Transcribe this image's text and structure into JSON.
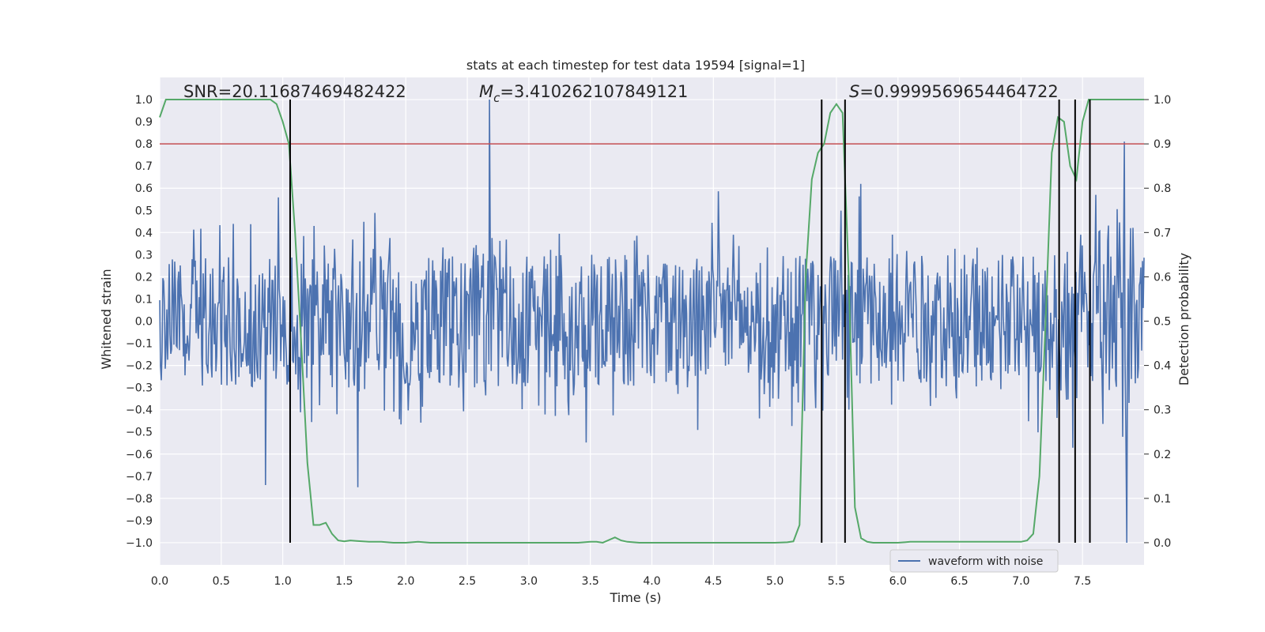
{
  "chart_data": {
    "type": "line",
    "title": "stats at each timestep for test data 19594 [signal=1]",
    "xlabel": "Time (s)",
    "ylabel": "Whitened strain",
    "y2label": "Detection probability",
    "xlim": [
      0.0,
      8.0
    ],
    "ylim": [
      -1.1,
      1.1
    ],
    "y2lim": [
      -0.05,
      1.05
    ],
    "xticks": [
      "0.0",
      "0.5",
      "1.0",
      "1.5",
      "2.0",
      "2.5",
      "3.0",
      "3.5",
      "4.0",
      "4.5",
      "5.0",
      "5.5",
      "6.0",
      "6.5",
      "7.0",
      "7.5"
    ],
    "yticks": [
      "1.0",
      "0.9",
      "0.8",
      "0.7",
      "0.6",
      "0.5",
      "0.4",
      "0.3",
      "0.2",
      "0.1",
      "0.0",
      "−0.1",
      "−0.2",
      "−0.3",
      "−0.4",
      "−0.5",
      "−0.6",
      "−0.7",
      "−0.8",
      "−0.9",
      "−1.0"
    ],
    "y2ticks": [
      "1.0",
      "0.9",
      "0.8",
      "0.7",
      "0.6",
      "0.5",
      "0.4",
      "0.3",
      "0.2",
      "0.1",
      "0.0"
    ],
    "grid": true,
    "legend_position": "bottom-right",
    "annotations": {
      "snr": "SNR=20.11687469482422",
      "mc_symbol": "M",
      "mc_sub": "c",
      "mc_value": "=3.410262107849121",
      "s_symbol": "S",
      "s_value": "=0.9999569654464722"
    },
    "threshold_line": {
      "y": 0.8,
      "color": "#c44e52"
    },
    "vertical_lines": {
      "x": [
        1.06,
        5.38,
        5.57,
        7.31,
        7.44,
        7.56
      ],
      "y_range": [
        -1.0,
        1.0
      ],
      "color": "#000000"
    },
    "series": [
      {
        "name": "waveform with noise",
        "color": "#4c72b0",
        "style": "dense noisy strain signal spanning approx -0.4 to 0.4 with spikes",
        "notable_peaks": [
          [
            2.68,
            1.0
          ],
          [
            7.86,
            -1.0
          ],
          [
            7.84,
            0.81
          ],
          [
            1.61,
            -0.75
          ],
          [
            0.86,
            -0.74
          ]
        ]
      },
      {
        "name": "",
        "color": "#55a868",
        "axis": "right",
        "x": [
          0.0,
          0.05,
          0.1,
          0.2,
          0.3,
          0.4,
          0.5,
          0.6,
          0.7,
          0.8,
          0.9,
          0.95,
          1.0,
          1.05,
          1.1,
          1.15,
          1.2,
          1.25,
          1.3,
          1.35,
          1.4,
          1.45,
          1.5,
          1.55,
          1.6,
          1.7,
          1.8,
          1.9,
          2.0,
          2.1,
          2.2,
          2.3,
          2.5,
          3.0,
          3.4,
          3.5,
          3.55,
          3.6,
          3.7,
          3.75,
          3.8,
          3.9,
          4.0,
          4.5,
          5.0,
          5.1,
          5.15,
          5.2,
          5.25,
          5.3,
          5.35,
          5.4,
          5.45,
          5.5,
          5.55,
          5.6,
          5.65,
          5.7,
          5.75,
          5.8,
          5.85,
          5.9,
          6.0,
          6.1,
          6.2,
          6.4,
          6.6,
          6.8,
          6.9,
          7.0,
          7.05,
          7.1,
          7.15,
          7.2,
          7.25,
          7.3,
          7.35,
          7.4,
          7.45,
          7.5,
          7.55,
          7.6,
          7.65,
          7.7,
          7.8,
          7.9,
          8.0
        ],
        "values": [
          0.96,
          1.0,
          1.0,
          1.0,
          1.0,
          1.0,
          1.0,
          1.0,
          1.0,
          1.0,
          1.0,
          0.99,
          0.95,
          0.9,
          0.7,
          0.45,
          0.18,
          0.04,
          0.04,
          0.045,
          0.02,
          0.005,
          0.003,
          0.005,
          0.004,
          0.002,
          0.002,
          0.0,
          0.0,
          0.002,
          0.0,
          0.0,
          0.0,
          0.0,
          0.0,
          0.002,
          0.002,
          0.0,
          0.012,
          0.005,
          0.002,
          0.0,
          0.0,
          0.0,
          0.0,
          0.001,
          0.003,
          0.04,
          0.6,
          0.82,
          0.88,
          0.9,
          0.97,
          0.99,
          0.97,
          0.6,
          0.08,
          0.01,
          0.002,
          0.0,
          0.0,
          0.0,
          0.0,
          0.002,
          0.002,
          0.002,
          0.002,
          0.002,
          0.002,
          0.002,
          0.005,
          0.02,
          0.15,
          0.5,
          0.88,
          0.96,
          0.95,
          0.85,
          0.82,
          0.95,
          1.0,
          1.0,
          1.0,
          1.0,
          1.0,
          1.0,
          1.0
        ]
      }
    ]
  }
}
